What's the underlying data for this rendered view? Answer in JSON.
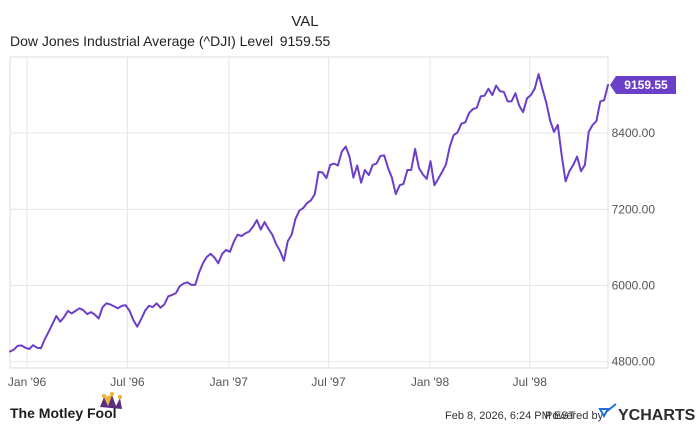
{
  "legend": {
    "header": "VAL",
    "series_name": "Dow Jones Industrial Average (^DJI) Level",
    "series_value": "9159.55"
  },
  "footer": {
    "brand": "The Motley Fool",
    "timestamp": "Feb 8, 2026, 6:24 PM EST",
    "powered_by": "Powered by",
    "ycharts": "YCHARTS"
  },
  "colors": {
    "line": "#6c3fc9",
    "grid": "#e6e6e6",
    "axis_text": "#555555",
    "badge": "#6c3fc9"
  },
  "chart_data": {
    "type": "line",
    "title": "",
    "xlabel": "",
    "ylabel": "",
    "ylim": [
      4700,
      9600
    ],
    "xlim": [
      "1995-12-01",
      "1998-11-20"
    ],
    "y_ticks": [
      {
        "value": 4800,
        "label": "4800.00"
      },
      {
        "value": 6000,
        "label": "6000.00"
      },
      {
        "value": 7200,
        "label": "7200.00"
      },
      {
        "value": 8400,
        "label": "8400.00"
      }
    ],
    "x_ticks": [
      {
        "date": "1996-01-01",
        "label": "Jan '96"
      },
      {
        "date": "1996-07-01",
        "label": "Jul '96"
      },
      {
        "date": "1997-01-01",
        "label": "Jan '97"
      },
      {
        "date": "1997-07-01",
        "label": "Jul '97"
      },
      {
        "date": "1998-01-01",
        "label": "Jan '98"
      },
      {
        "date": "1998-07-01",
        "label": "Jul '98"
      }
    ],
    "grid": true,
    "last_value_label": "9159.55",
    "series": [
      {
        "name": "Dow Jones Industrial Average (^DJI) Level",
        "points": [
          [
            "1995-12-01",
            4960
          ],
          [
            "1995-12-08",
            4990
          ],
          [
            "1995-12-15",
            5050
          ],
          [
            "1995-12-22",
            5055
          ],
          [
            "1995-12-29",
            5020
          ],
          [
            "1996-01-05",
            5000
          ],
          [
            "1996-01-12",
            5060
          ],
          [
            "1996-01-19",
            5020
          ],
          [
            "1996-01-26",
            5010
          ],
          [
            "1996-02-02",
            5150
          ],
          [
            "1996-02-09",
            5270
          ],
          [
            "1996-02-16",
            5390
          ],
          [
            "1996-02-23",
            5520
          ],
          [
            "1996-03-01",
            5430
          ],
          [
            "1996-03-08",
            5500
          ],
          [
            "1996-03-15",
            5600
          ],
          [
            "1996-03-22",
            5560
          ],
          [
            "1996-03-29",
            5600
          ],
          [
            "1996-04-05",
            5640
          ],
          [
            "1996-04-12",
            5610
          ],
          [
            "1996-04-19",
            5550
          ],
          [
            "1996-04-26",
            5580
          ],
          [
            "1996-05-03",
            5540
          ],
          [
            "1996-05-10",
            5480
          ],
          [
            "1996-05-17",
            5660
          ],
          [
            "1996-05-24",
            5720
          ],
          [
            "1996-05-31",
            5700
          ],
          [
            "1996-06-07",
            5670
          ],
          [
            "1996-06-14",
            5640
          ],
          [
            "1996-06-21",
            5680
          ],
          [
            "1996-06-28",
            5690
          ],
          [
            "1996-07-05",
            5600
          ],
          [
            "1996-07-12",
            5450
          ],
          [
            "1996-07-19",
            5350
          ],
          [
            "1996-07-26",
            5470
          ],
          [
            "1996-08-02",
            5600
          ],
          [
            "1996-08-09",
            5680
          ],
          [
            "1996-08-16",
            5660
          ],
          [
            "1996-08-23",
            5720
          ],
          [
            "1996-08-30",
            5650
          ],
          [
            "1996-09-06",
            5700
          ],
          [
            "1996-09-13",
            5830
          ],
          [
            "1996-09-20",
            5850
          ],
          [
            "1996-09-27",
            5880
          ],
          [
            "1996-10-04",
            5990
          ],
          [
            "1996-10-11",
            6030
          ],
          [
            "1996-10-18",
            6050
          ],
          [
            "1996-10-25",
            6010
          ],
          [
            "1996-11-01",
            6010
          ],
          [
            "1996-11-08",
            6200
          ],
          [
            "1996-11-15",
            6350
          ],
          [
            "1996-11-22",
            6450
          ],
          [
            "1996-11-29",
            6500
          ],
          [
            "1996-12-06",
            6440
          ],
          [
            "1996-12-13",
            6350
          ],
          [
            "1996-12-20",
            6500
          ],
          [
            "1996-12-27",
            6560
          ],
          [
            "1997-01-03",
            6530
          ],
          [
            "1997-01-10",
            6690
          ],
          [
            "1997-01-17",
            6800
          ],
          [
            "1997-01-24",
            6780
          ],
          [
            "1997-01-31",
            6820
          ],
          [
            "1997-02-07",
            6850
          ],
          [
            "1997-02-14",
            6930
          ],
          [
            "1997-02-21",
            7030
          ],
          [
            "1997-02-28",
            6880
          ],
          [
            "1997-03-07",
            7000
          ],
          [
            "1997-03-14",
            6890
          ],
          [
            "1997-03-21",
            6800
          ],
          [
            "1997-03-28",
            6650
          ],
          [
            "1997-04-04",
            6540
          ],
          [
            "1997-04-11",
            6390
          ],
          [
            "1997-04-18",
            6700
          ],
          [
            "1997-04-25",
            6800
          ],
          [
            "1997-05-02",
            7050
          ],
          [
            "1997-05-09",
            7180
          ],
          [
            "1997-05-16",
            7220
          ],
          [
            "1997-05-23",
            7300
          ],
          [
            "1997-05-30",
            7340
          ],
          [
            "1997-06-06",
            7440
          ],
          [
            "1997-06-13",
            7790
          ],
          [
            "1997-06-20",
            7780
          ],
          [
            "1997-06-27",
            7690
          ],
          [
            "1997-07-04",
            7900
          ],
          [
            "1997-07-11",
            7920
          ],
          [
            "1997-07-18",
            7890
          ],
          [
            "1997-07-25",
            8110
          ],
          [
            "1997-08-01",
            8190
          ],
          [
            "1997-08-08",
            8030
          ],
          [
            "1997-08-15",
            7700
          ],
          [
            "1997-08-22",
            7890
          ],
          [
            "1997-08-29",
            7620
          ],
          [
            "1997-09-05",
            7820
          ],
          [
            "1997-09-12",
            7740
          ],
          [
            "1997-09-19",
            7900
          ],
          [
            "1997-09-26",
            7920
          ],
          [
            "1997-10-03",
            8040
          ],
          [
            "1997-10-10",
            8050
          ],
          [
            "1997-10-17",
            7850
          ],
          [
            "1997-10-24",
            7700
          ],
          [
            "1997-10-31",
            7440
          ],
          [
            "1997-11-07",
            7580
          ],
          [
            "1997-11-14",
            7600
          ],
          [
            "1997-11-21",
            7820
          ],
          [
            "1997-11-28",
            7820
          ],
          [
            "1997-12-05",
            8150
          ],
          [
            "1997-12-12",
            7850
          ],
          [
            "1997-12-19",
            7750
          ],
          [
            "1997-12-26",
            7680
          ],
          [
            "1998-01-02",
            7960
          ],
          [
            "1998-01-09",
            7580
          ],
          [
            "1998-01-16",
            7680
          ],
          [
            "1998-01-23",
            7790
          ],
          [
            "1998-01-30",
            7910
          ],
          [
            "1998-02-06",
            8190
          ],
          [
            "1998-02-13",
            8370
          ],
          [
            "1998-02-20",
            8410
          ],
          [
            "1998-02-27",
            8550
          ],
          [
            "1998-03-06",
            8570
          ],
          [
            "1998-03-13",
            8720
          ],
          [
            "1998-03-20",
            8780
          ],
          [
            "1998-03-27",
            8800
          ],
          [
            "1998-04-03",
            8980
          ],
          [
            "1998-04-10",
            8990
          ],
          [
            "1998-04-17",
            9100
          ],
          [
            "1998-04-24",
            9000
          ],
          [
            "1998-05-01",
            9150
          ],
          [
            "1998-05-08",
            9060
          ],
          [
            "1998-05-15",
            9050
          ],
          [
            "1998-05-22",
            8900
          ],
          [
            "1998-05-29",
            8900
          ],
          [
            "1998-06-05",
            9030
          ],
          [
            "1998-06-12",
            8830
          ],
          [
            "1998-06-19",
            8730
          ],
          [
            "1998-06-26",
            8950
          ],
          [
            "1998-07-03",
            9000
          ],
          [
            "1998-07-10",
            9100
          ],
          [
            "1998-07-17",
            9330
          ],
          [
            "1998-07-24",
            9100
          ],
          [
            "1998-07-31",
            8880
          ],
          [
            "1998-08-07",
            8600
          ],
          [
            "1998-08-14",
            8420
          ],
          [
            "1998-08-21",
            8530
          ],
          [
            "1998-08-28",
            8050
          ],
          [
            "1998-09-04",
            7640
          ],
          [
            "1998-09-11",
            7800
          ],
          [
            "1998-09-18",
            7900
          ],
          [
            "1998-09-25",
            8030
          ],
          [
            "1998-10-02",
            7800
          ],
          [
            "1998-10-09",
            7900
          ],
          [
            "1998-10-16",
            8420
          ],
          [
            "1998-10-23",
            8530
          ],
          [
            "1998-10-30",
            8590
          ],
          [
            "1998-11-06",
            8900
          ],
          [
            "1998-11-13",
            8920
          ],
          [
            "1998-11-20",
            9159.55
          ]
        ]
      }
    ]
  }
}
